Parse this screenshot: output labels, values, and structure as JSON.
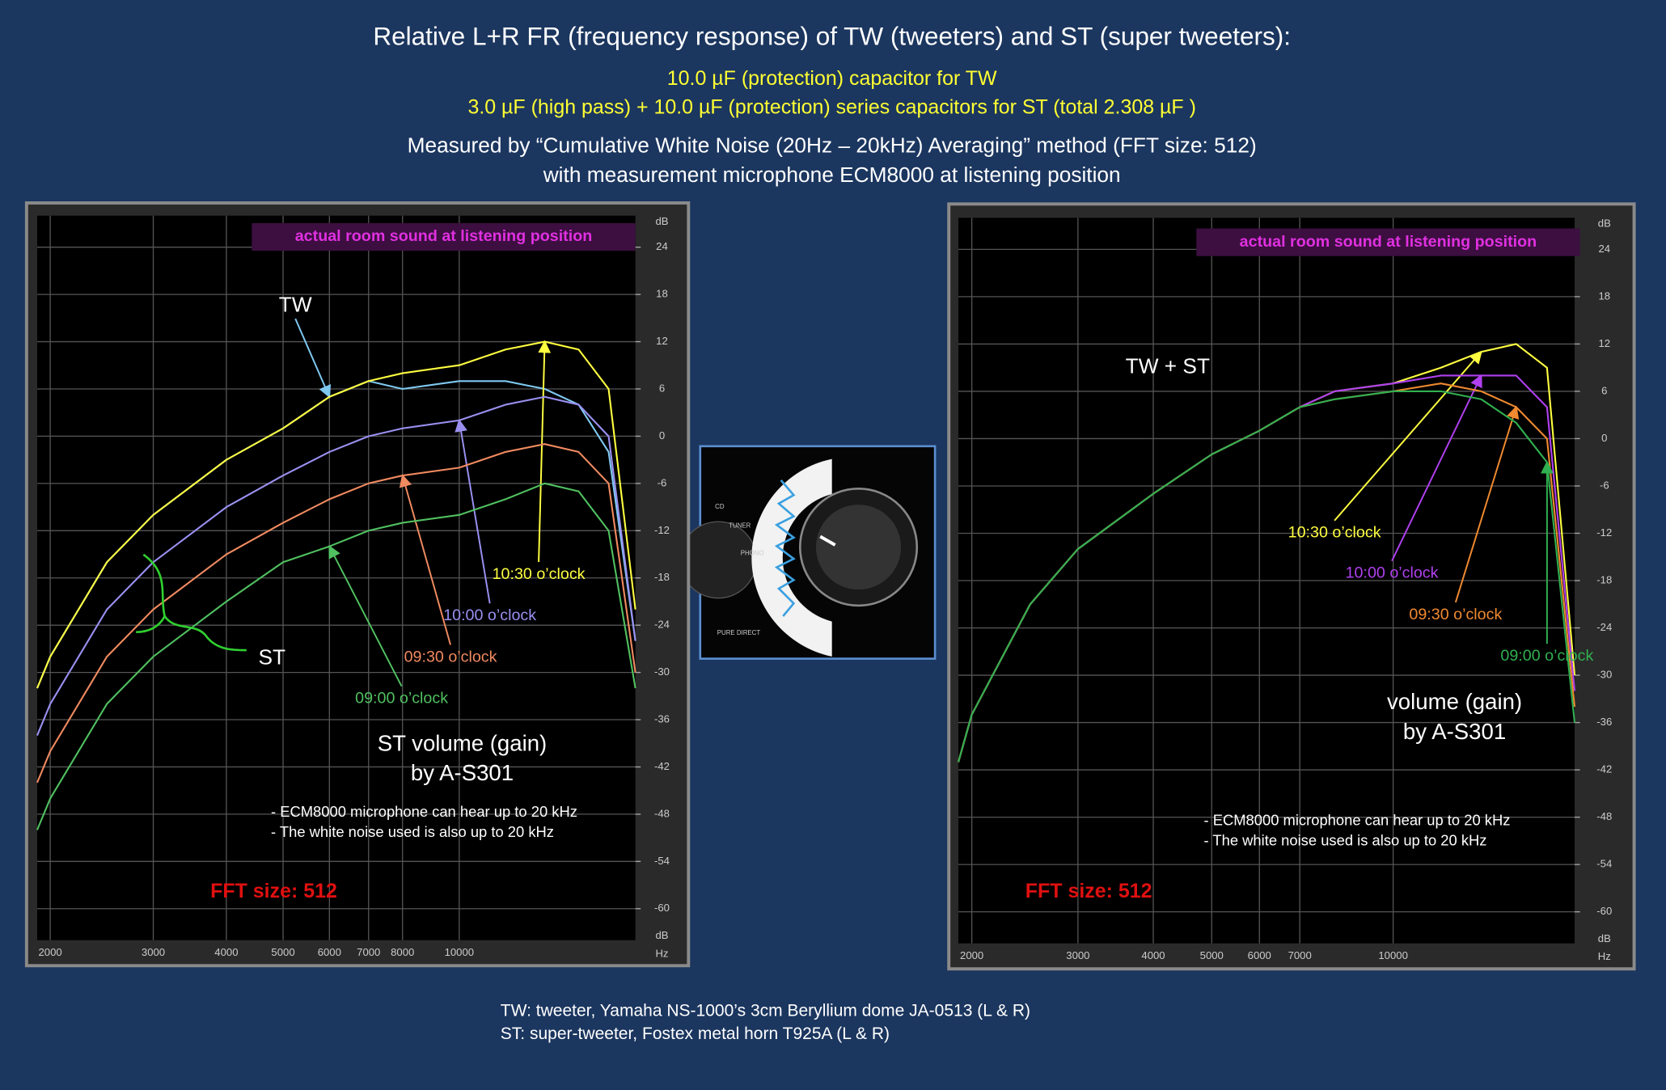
{
  "header": {
    "title": "Relative  L+R FR (frequency response) of TW (tweeters) and ST (super tweeters):",
    "subtitle_lines": [
      "10.0 µF (protection) capacitor for TW",
      "3.0 µF (high pass) + 10.0 µF (protection) series capacitors for ST (total 2.308 µF )"
    ],
    "method_lines": [
      "Measured by “Cumulative White Noise (20Hz – 20kHz) Averaging” method (FFT size: 512)",
      "with measurement microphone ECM8000 at listening position"
    ]
  },
  "chart_data": [
    {
      "type": "line",
      "banner": "actual room sound at listening  position",
      "log_x": true,
      "grid": true,
      "x_unit": "Hz",
      "y_unit": "dB",
      "x": [
        1900,
        2000,
        2500,
        3000,
        4000,
        5000,
        6000,
        7000,
        8000,
        10000,
        12000,
        14000,
        16000,
        18000,
        20000
      ],
      "xlim": [
        1900,
        20000
      ],
      "xticks": [
        2000,
        3000,
        4000,
        5000,
        6000,
        7000,
        8000,
        10000
      ],
      "ylim": [
        -64,
        28
      ],
      "yticks": [
        24,
        18,
        12,
        6,
        0,
        -6,
        -12,
        -18,
        -24,
        -30,
        -36,
        -42,
        -48,
        -54,
        -60
      ],
      "series": [
        {
          "name": "TW",
          "color": "#7fc8f0",
          "values": [
            -32,
            -28,
            -16,
            -10,
            -3,
            1,
            5,
            7,
            6,
            7,
            7,
            6,
            4,
            -2,
            -26
          ]
        },
        {
          "name": "10:30 o’clock",
          "color": "#ffff40",
          "values": [
            -32,
            -28,
            -16,
            -10,
            -3,
            1,
            5,
            7,
            8,
            9,
            11,
            12,
            11,
            6,
            -22
          ]
        },
        {
          "name": "10:00 o’clock",
          "color": "#9a90f0",
          "values": [
            -38,
            -34,
            -22,
            -16,
            -9,
            -5,
            -2,
            0,
            1,
            2,
            4,
            5,
            4,
            0,
            -26
          ]
        },
        {
          "name": "09:30 o’clock",
          "color": "#f08a60",
          "values": [
            -44,
            -40,
            -28,
            -22,
            -15,
            -11,
            -8,
            -6,
            -5,
            -4,
            -2,
            -1,
            -2,
            -6,
            -30
          ]
        },
        {
          "name": "09:00 o’clock",
          "color": "#50c060",
          "values": [
            -50,
            -46,
            -34,
            -28,
            -21,
            -16,
            -14,
            -12,
            -11,
            -10,
            -8,
            -6,
            -7,
            -12,
            -32
          ]
        }
      ],
      "annotations": [
        "ST"
      ],
      "gain_lines": [
        "ST volume (gain)",
        "by  A-S301"
      ],
      "notes": [
        "- ECM8000 microphone  can hear up to 20 kHz",
        "- The white noise used is also up to 20 kHz"
      ],
      "fft_label": "FFT size: 512"
    },
    {
      "type": "line",
      "banner": "actual room sound at listening  position",
      "log_x": true,
      "grid": true,
      "x_unit": "Hz",
      "y_unit": "dB",
      "x": [
        1900,
        2000,
        2500,
        3000,
        4000,
        5000,
        6000,
        7000,
        8000,
        10000,
        12000,
        14000,
        16000,
        18000,
        20000
      ],
      "xlim": [
        1900,
        20000
      ],
      "xticks": [
        2000,
        3000,
        4000,
        5000,
        6000,
        7000,
        10000
      ],
      "ylim": [
        -64,
        28
      ],
      "yticks": [
        24,
        18,
        12,
        6,
        0,
        -6,
        -12,
        -18,
        -24,
        -30,
        -36,
        -42,
        -48,
        -54,
        -60
      ],
      "series": [
        {
          "name": "10:30 o’clock",
          "color": "#ffff40",
          "values": [
            -41,
            -35,
            -21,
            -14,
            -7,
            -2,
            1,
            4,
            6,
            7,
            9,
            11,
            12,
            9,
            -30
          ]
        },
        {
          "name": "10:00 o’clock",
          "color": "#b040f0",
          "values": [
            -41,
            -35,
            -21,
            -14,
            -7,
            -2,
            1,
            4,
            6,
            7,
            8,
            8,
            8,
            4,
            -32
          ]
        },
        {
          "name": "09:30 o’clock",
          "color": "#f08a30",
          "values": [
            -41,
            -35,
            -21,
            -14,
            -7,
            -2,
            1,
            4,
            5,
            6,
            7,
            6,
            4,
            0,
            -34
          ]
        },
        {
          "name": "09:00 o’clock",
          "color": "#30b050",
          "values": [
            -41,
            -35,
            -21,
            -14,
            -7,
            -2,
            1,
            4,
            5,
            6,
            6,
            5,
            2,
            -3,
            -36
          ]
        }
      ],
      "annotations": [
        "TW + ST"
      ],
      "gain_lines": [
        "volume (gain)",
        "by  A-S301"
      ],
      "notes": [
        "- ECM8000 microphone  can hear up to 20 kHz",
        "- The white noise used is also up to 20 kHz"
      ],
      "fft_label": "FFT size: 512"
    }
  ],
  "knob_image": {
    "labels": [
      "CD",
      "TUNER",
      "PHONO",
      "PURE DIRECT"
    ]
  },
  "footer": {
    "lines": [
      "TW: tweeter, Yamaha NS-1000’s 3cm Beryllium dome JA-0513 (L & R)",
      "ST:  super-tweeter, Fostex metal horn T925A  (L & R)"
    ]
  }
}
